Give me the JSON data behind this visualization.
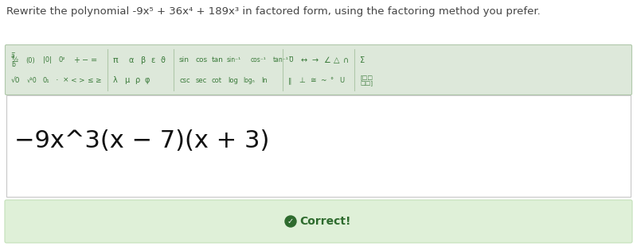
{
  "title": "Rewrite the polynomial -9x⁵ + 36x⁴ + 189x³ in factored form, using the factoring method you prefer.",
  "title_fontsize": 9.5,
  "title_color": "#444444",
  "answer_text": "−9x^3(x − 7)(x + 3)",
  "answer_fontsize": 22,
  "answer_color": "#111111",
  "toolbar_bg": "#dde8da",
  "toolbar_border": "#b0c8aa",
  "answer_box_bg": "#ffffff",
  "answer_box_border": "#c8c8c8",
  "correct_banner_bg": "#dff0d8",
  "correct_banner_border": "#c3e0b8",
  "correct_icon": "●",
  "correct_text": "Correct!",
  "correct_text_color": "#2e6b2e",
  "correct_fontsize": 10,
  "fig_bg": "#ffffff",
  "fig_width": 8.0,
  "fig_height": 3.1,
  "dpi": 100,
  "toolbar_symbol_color": "#3a7a3a",
  "outer_bg": "#f0f0f0"
}
